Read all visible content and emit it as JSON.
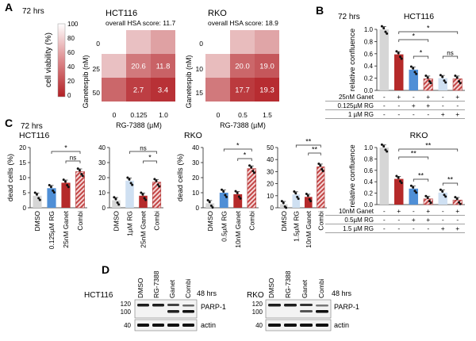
{
  "colors": {
    "red": "#b52a2a",
    "blue": "#4f8fd6",
    "lightblue": "#cfe0f2",
    "grey": "#d6d6d6",
    "hatch": "#c75050",
    "heat_high": "#ffffff",
    "heat_low": "#b21f24"
  },
  "panels": {
    "a": "A",
    "b": "B",
    "c": "C",
    "d": "D"
  },
  "panel_a": {
    "time": "72 hrs",
    "colorbar": {
      "label": "cell viability (%)",
      "ticks": [
        "100",
        "80",
        "60",
        "40",
        "20",
        "0"
      ]
    },
    "hct116": {
      "title": "HCT116",
      "score": "overall HSA score: 11.7",
      "ylabel": "Ganetespib (nM)",
      "xlabel": "RG-7388 (µM)",
      "yticks": [
        "0",
        "25",
        "50"
      ],
      "xticks": [
        "0",
        "0.125",
        "1.0"
      ],
      "cells": [
        [
          {
            "v": 100,
            "t": ""
          },
          {
            "v": 72,
            "t": ""
          },
          {
            "v": 58,
            "t": ""
          }
        ],
        [
          {
            "v": 72,
            "t": ""
          },
          {
            "v": 40,
            "t": "20.6"
          },
          {
            "v": 30,
            "t": "11.8"
          }
        ],
        [
          {
            "v": 32,
            "t": ""
          },
          {
            "v": 14,
            "t": "2.7"
          },
          {
            "v": 8,
            "t": "3.4"
          }
        ]
      ]
    },
    "rko": {
      "title": "RKO",
      "score": "overall HSA score: 18.9",
      "ylabel": "Ganetespib (nM)",
      "xlabel": "RG-7388 (µM)",
      "yticks": [
        "0",
        "10",
        "15"
      ],
      "xticks": [
        "0",
        "0.5",
        "1.5"
      ],
      "cells": [
        [
          {
            "v": 100,
            "t": ""
          },
          {
            "v": 70,
            "t": ""
          },
          {
            "v": 60,
            "t": ""
          }
        ],
        [
          {
            "v": 70,
            "t": ""
          },
          {
            "v": 32,
            "t": "20.0"
          },
          {
            "v": 25,
            "t": "19.0"
          }
        ],
        [
          {
            "v": 40,
            "t": ""
          },
          {
            "v": 12,
            "t": "17.7"
          },
          {
            "v": 6,
            "t": "19.3"
          }
        ]
      ]
    }
  },
  "chart_data": [
    {
      "type": "bar",
      "panel": "B",
      "title": "HCT116",
      "time": "72 hrs",
      "ylabel": "relative confluence",
      "ylim": [
        0,
        1.0
      ],
      "yticks": [
        "0.0",
        "0.2",
        "0.4",
        "0.6",
        "0.8",
        "1.0"
      ],
      "values": [
        1.0,
        0.59,
        0.34,
        0.19,
        0.2,
        0.19
      ],
      "fills": [
        "grey",
        "red",
        "blue",
        "hatch",
        "lightblue",
        "hatch"
      ],
      "table": {
        "rows": [
          {
            "label": "25nM Ganet",
            "marks": [
              "-",
              "+",
              "-",
              "+",
              "-",
              "+"
            ]
          },
          {
            "label": "0.125µM RG",
            "marks": [
              "-",
              "-",
              "+",
              "+",
              "-",
              "-"
            ]
          },
          {
            "label": "1 µM RG",
            "marks": [
              "-",
              "-",
              "-",
              "-",
              "+",
              "+"
            ]
          }
        ]
      },
      "sig": [
        {
          "from": 1,
          "to": 5,
          "text": "*"
        },
        {
          "from": 1,
          "to": 3,
          "text": "*"
        },
        {
          "from": 2,
          "to": 3,
          "text": "*"
        },
        {
          "from": 4,
          "to": 5,
          "text": "ns"
        }
      ]
    },
    {
      "type": "bar",
      "panel": "B",
      "title": "RKO",
      "ylabel": "relative confluence",
      "ylim": [
        0,
        1.0
      ],
      "yticks": [
        "0.0",
        "0.2",
        "0.4",
        "0.6",
        "0.8",
        "1.0"
      ],
      "values": [
        1.0,
        0.45,
        0.28,
        0.1,
        0.21,
        0.08
      ],
      "fills": [
        "grey",
        "red",
        "blue",
        "hatch",
        "lightblue",
        "hatch"
      ],
      "table": {
        "rows": [
          {
            "label": "10nM Ganet",
            "marks": [
              "-",
              "+",
              "-",
              "+",
              "-",
              "+"
            ]
          },
          {
            "label": "0.5µM RG",
            "marks": [
              "-",
              "-",
              "+",
              "+",
              "-",
              "-"
            ]
          },
          {
            "label": "1.5 µM RG",
            "marks": [
              "-",
              "-",
              "-",
              "-",
              "+",
              "+"
            ]
          }
        ]
      },
      "sig": [
        {
          "from": 1,
          "to": 5,
          "text": "**"
        },
        {
          "from": 1,
          "to": 3,
          "text": "**"
        },
        {
          "from": 2,
          "to": 3,
          "text": "**"
        },
        {
          "from": 4,
          "to": 5,
          "text": "**"
        }
      ]
    },
    {
      "type": "bar",
      "panel": "C",
      "title": "HCT116",
      "time": "72 hrs",
      "ylabel": "dead cells (%)",
      "ylim": [
        0,
        20
      ],
      "yticks": [
        "0",
        "5",
        "10",
        "15",
        "20"
      ],
      "categories": [
        "DMSO",
        "0.125µM RG",
        "25nM Ganet",
        "Combi"
      ],
      "values": [
        4,
        6.5,
        8.3,
        12
      ],
      "fills": [
        "grey",
        "blue",
        "red",
        "hatch"
      ],
      "sig": [
        {
          "from": 1,
          "to": 3,
          "text": "*"
        },
        {
          "from": 2,
          "to": 3,
          "text": "ns"
        }
      ]
    },
    {
      "type": "bar",
      "panel": "C",
      "title": "",
      "ylabel": "",
      "ylim": [
        0,
        40
      ],
      "yticks": [
        "0",
        "10",
        "20",
        "30",
        "40"
      ],
      "categories": [
        "DMSO",
        "1µM RG",
        "25nM Ganet",
        "Combi"
      ],
      "values": [
        5,
        18,
        8,
        17
      ],
      "fills": [
        "grey",
        "lightblue",
        "red",
        "hatch"
      ],
      "sig": [
        {
          "from": 1,
          "to": 3,
          "text": "ns"
        },
        {
          "from": 2,
          "to": 3,
          "text": "*"
        }
      ]
    },
    {
      "type": "bar",
      "panel": "C",
      "title": "RKO",
      "ylabel": "dead cells (%)",
      "ylim": [
        0,
        40
      ],
      "yticks": [
        "0",
        "10",
        "20",
        "30",
        "40"
      ],
      "categories": [
        "DMSO",
        "0.5µM RG",
        "10nM Ganet",
        "Combi"
      ],
      "values": [
        3,
        10,
        9,
        26
      ],
      "fills": [
        "grey",
        "blue",
        "red",
        "hatch"
      ],
      "sig": [
        {
          "from": 1,
          "to": 3,
          "text": "*"
        },
        {
          "from": 2,
          "to": 3,
          "text": "*"
        }
      ]
    },
    {
      "type": "bar",
      "panel": "C",
      "title": "",
      "ylabel": "",
      "ylim": [
        0,
        50
      ],
      "yticks": [
        "0",
        "10",
        "20",
        "30",
        "40",
        "50"
      ],
      "categories": [
        "DMSO",
        "1.5µM RG",
        "10nM Ganet",
        "Combi"
      ],
      "values": [
        3,
        11,
        9,
        34
      ],
      "fills": [
        "grey",
        "lightblue",
        "red",
        "hatch"
      ],
      "sig": [
        {
          "from": 1,
          "to": 3,
          "text": "**"
        },
        {
          "from": 2,
          "to": 3,
          "text": "**"
        }
      ]
    }
  ],
  "panel_d": {
    "hct116": {
      "cell_line": "HCT116",
      "lanes": [
        "DMSO",
        "RG-7388",
        "Ganet",
        "Combi"
      ],
      "time": "48 hrs",
      "markers": [
        "120",
        "100",
        "40"
      ],
      "bands": [
        "PARP-1",
        "actin"
      ]
    },
    "rko": {
      "cell_line": "RKO",
      "lanes": [
        "DMSO",
        "RG-7388",
        "Ganet",
        "Combi"
      ],
      "time": "48 hrs",
      "markers": [
        "120",
        "100",
        "40"
      ],
      "bands": [
        "PARP-1",
        "actin"
      ]
    }
  }
}
